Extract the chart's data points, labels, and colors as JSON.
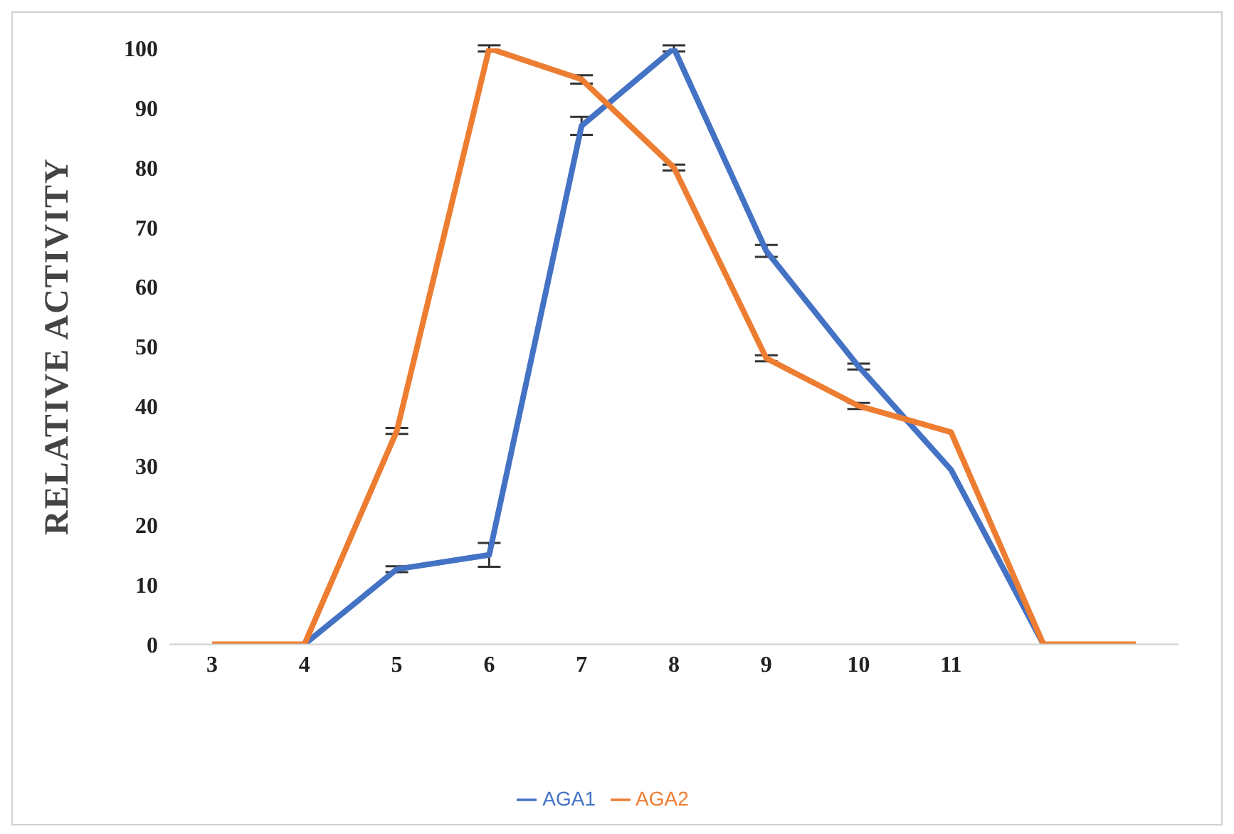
{
  "chart_data": {
    "type": "line",
    "ylabel": "RELATIVE ACTIVITY",
    "categories": [
      "3",
      "4",
      "5",
      "6",
      "7",
      "8",
      "9",
      "10",
      "11",
      null,
      null
    ],
    "series": [
      {
        "name": "AGA1",
        "color": "#4472c4",
        "values": [
          null,
          0,
          12.6,
          15,
          87,
          100,
          66,
          46.6,
          29.3,
          0,
          null
        ],
        "errors": [
          null,
          null,
          0.5,
          2,
          1.5,
          0.5,
          1,
          0.5,
          null,
          null,
          null
        ]
      },
      {
        "name": "AGA2",
        "color": "#ed7d31",
        "values": [
          0,
          0,
          35.8,
          100,
          94.8,
          80,
          48,
          40,
          35.6,
          0,
          0
        ],
        "errors": [
          null,
          null,
          0.5,
          0.5,
          0.7,
          0.5,
          0.5,
          0.5,
          null,
          null,
          null
        ]
      }
    ],
    "ylim": [
      0,
      100
    ],
    "yticks": [
      0,
      10,
      20,
      30,
      40,
      50,
      60,
      70,
      80,
      90,
      100
    ],
    "legend": "bottom",
    "marker": "none",
    "line_style": "solid",
    "grid": false
  }
}
